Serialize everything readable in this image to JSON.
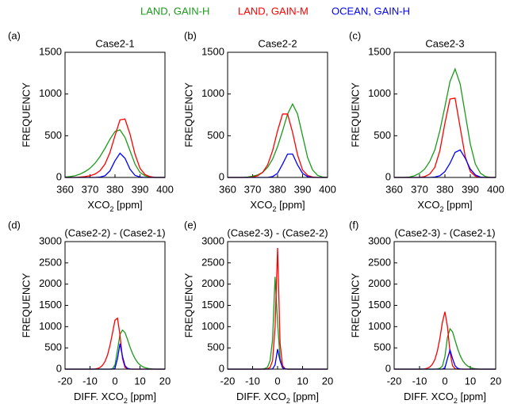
{
  "legend": [
    {
      "name": "LAND, GAIN-H",
      "color": "#1a9a1a"
    },
    {
      "name": "LAND, GAIN-M",
      "color": "#ff0000"
    },
    {
      "name": "OCEAN, GAIN-H",
      "color": "#0000ff"
    }
  ],
  "chart_data": [
    {
      "type": "line",
      "panel": "(a)",
      "title": "Case2-1",
      "xlabel": [
        "XCO",
        "2",
        " [ppm]"
      ],
      "ylabel": "FREQUENCY",
      "x": [
        360,
        362,
        364,
        366,
        368,
        370,
        372,
        374,
        376,
        378,
        380,
        382,
        384,
        386,
        388,
        390,
        392,
        394,
        396,
        398,
        400
      ],
      "xlim": [
        360,
        400
      ],
      "xticks": [
        360,
        370,
        380,
        390,
        400
      ],
      "ylim": [
        0,
        1500
      ],
      "yticks": [
        0,
        500,
        1000,
        1500
      ],
      "series": [
        {
          "color": "#1a9a1a",
          "values": [
            5,
            10,
            20,
            40,
            70,
            110,
            170,
            250,
            350,
            460,
            550,
            570,
            480,
            320,
            160,
            60,
            20,
            5,
            0,
            0,
            0
          ]
        },
        {
          "color": "#ff0000",
          "values": [
            0,
            0,
            0,
            5,
            10,
            20,
            40,
            80,
            160,
            300,
            500,
            690,
            700,
            520,
            280,
            110,
            35,
            10,
            0,
            0,
            0
          ]
        },
        {
          "color": "#0000ff",
          "values": [
            0,
            0,
            0,
            0,
            0,
            0,
            0,
            5,
            20,
            80,
            200,
            290,
            230,
            100,
            25,
            5,
            0,
            0,
            0,
            0,
            0
          ]
        }
      ]
    },
    {
      "type": "line",
      "panel": "(b)",
      "title": "Case2-2",
      "xlabel": [
        "XCO",
        "2",
        " [ppm]"
      ],
      "ylabel": "FREQUENCY",
      "x": [
        360,
        362,
        364,
        366,
        368,
        370,
        372,
        374,
        376,
        378,
        380,
        382,
        384,
        386,
        388,
        390,
        392,
        394,
        396,
        398,
        400
      ],
      "xlim": [
        360,
        400
      ],
      "xticks": [
        360,
        370,
        380,
        390,
        400
      ],
      "ylim": [
        0,
        1500
      ],
      "yticks": [
        0,
        500,
        1000,
        1500
      ],
      "series": [
        {
          "color": "#1a9a1a",
          "values": [
            0,
            0,
            0,
            0,
            5,
            15,
            30,
            60,
            120,
            220,
            370,
            560,
            760,
            880,
            760,
            500,
            240,
            90,
            25,
            5,
            0
          ]
        },
        {
          "color": "#ff0000",
          "values": [
            0,
            0,
            0,
            0,
            0,
            5,
            20,
            60,
            150,
            320,
            560,
            760,
            760,
            540,
            270,
            90,
            25,
            5,
            0,
            0,
            0
          ]
        },
        {
          "color": "#0000ff",
          "values": [
            0,
            0,
            0,
            0,
            0,
            0,
            0,
            0,
            0,
            10,
            50,
            160,
            280,
            280,
            150,
            50,
            10,
            0,
            0,
            0,
            0
          ]
        }
      ]
    },
    {
      "type": "line",
      "panel": "(c)",
      "title": "Case2-3",
      "xlabel": [
        "XCO",
        "2",
        " [ppm]"
      ],
      "ylabel": "FREQUENCY",
      "x": [
        360,
        362,
        364,
        366,
        368,
        370,
        372,
        374,
        376,
        378,
        380,
        382,
        384,
        386,
        388,
        390,
        392,
        394,
        396,
        398,
        400
      ],
      "xlim": [
        360,
        400
      ],
      "xticks": [
        360,
        370,
        380,
        390,
        400
      ],
      "ylim": [
        0,
        1500
      ],
      "yticks": [
        0,
        500,
        1000,
        1500
      ],
      "series": [
        {
          "color": "#1a9a1a",
          "values": [
            0,
            0,
            0,
            5,
            20,
            50,
            100,
            190,
            330,
            560,
            850,
            1150,
            1300,
            1120,
            760,
            400,
            160,
            50,
            10,
            0,
            0
          ]
        },
        {
          "color": "#ff0000",
          "values": [
            0,
            0,
            0,
            0,
            0,
            0,
            10,
            40,
            120,
            320,
            650,
            940,
            950,
            600,
            250,
            70,
            15,
            0,
            0,
            0,
            0
          ]
        },
        {
          "color": "#0000ff",
          "values": [
            0,
            0,
            0,
            0,
            0,
            0,
            0,
            0,
            5,
            20,
            70,
            170,
            300,
            330,
            230,
            100,
            30,
            5,
            0,
            0,
            0
          ]
        }
      ]
    },
    {
      "type": "line",
      "panel": "(d)",
      "title": "(Case2-2) - (Case2-1)",
      "xlabel": [
        "DIFF. XCO",
        "2",
        " [ppm]"
      ],
      "ylabel": "FREQUENCY",
      "x": [
        -20,
        -19,
        -18,
        -17,
        -16,
        -15,
        -14,
        -13,
        -12,
        -11,
        -10,
        -9,
        -8,
        -7,
        -6,
        -5,
        -4,
        -3,
        -2,
        -1,
        0,
        1,
        2,
        3,
        4,
        5,
        6,
        7,
        8,
        9,
        10,
        11,
        12,
        13,
        14,
        15,
        16,
        17,
        18,
        19,
        20
      ],
      "xlim": [
        -20,
        20
      ],
      "xticks": [
        -20,
        -10,
        0,
        10,
        20
      ],
      "ylim": [
        0,
        3000
      ],
      "yticks": [
        0,
        500,
        1000,
        1500,
        2000,
        2500,
        3000
      ],
      "series": [
        {
          "color": "#1a9a1a",
          "values": [
            0,
            0,
            0,
            0,
            0,
            0,
            0,
            0,
            0,
            0,
            0,
            0,
            0,
            0,
            0,
            0,
            0,
            0,
            0,
            10,
            100,
            450,
            820,
            920,
            860,
            700,
            520,
            370,
            250,
            160,
            100,
            60,
            35,
            20,
            10,
            5,
            0,
            0,
            0,
            0,
            0
          ]
        },
        {
          "color": "#ff0000",
          "values": [
            0,
            0,
            0,
            0,
            0,
            0,
            0,
            0,
            0,
            0,
            0,
            0,
            5,
            15,
            40,
            90,
            180,
            330,
            560,
            850,
            1150,
            1200,
            800,
            250,
            40,
            5,
            0,
            0,
            0,
            0,
            0,
            0,
            0,
            0,
            0,
            0,
            0,
            0,
            0,
            0,
            0
          ]
        },
        {
          "color": "#0000ff",
          "values": [
            0,
            0,
            0,
            0,
            0,
            0,
            0,
            0,
            0,
            0,
            0,
            0,
            0,
            0,
            0,
            0,
            0,
            0,
            0,
            0,
            20,
            250,
            600,
            300,
            80,
            20,
            5,
            0,
            0,
            0,
            0,
            0,
            0,
            0,
            0,
            0,
            0,
            0,
            0,
            0,
            0
          ]
        }
      ]
    },
    {
      "type": "line",
      "panel": "(e)",
      "title": "(Case2-3) - (Case2-2)",
      "xlabel": [
        "DIFF. XCO",
        "2",
        " [ppm]"
      ],
      "ylabel": "FREQUENCY",
      "x": [
        -20,
        -19,
        -18,
        -17,
        -16,
        -15,
        -14,
        -13,
        -12,
        -11,
        -10,
        -9,
        -8,
        -7,
        -6,
        -5,
        -4,
        -3,
        -2,
        -1,
        0,
        1,
        2,
        3,
        4,
        5,
        6,
        7,
        8,
        9,
        10,
        11,
        12,
        13,
        14,
        15,
        16,
        17,
        18,
        19,
        20
      ],
      "xlim": [
        -20,
        20
      ],
      "xticks": [
        -20,
        -10,
        0,
        10,
        20
      ],
      "ylim": [
        0,
        3000
      ],
      "yticks": [
        0,
        500,
        1000,
        1500,
        2000,
        2500,
        3000
      ],
      "series": [
        {
          "color": "#1a9a1a",
          "values": [
            0,
            0,
            0,
            0,
            0,
            0,
            0,
            0,
            0,
            0,
            0,
            0,
            0,
            0,
            5,
            15,
            50,
            200,
            700,
            2170,
            1100,
            250,
            50,
            10,
            0,
            0,
            0,
            0,
            0,
            0,
            0,
            0,
            0,
            0,
            0,
            0,
            0,
            0,
            0,
            0,
            0
          ]
        },
        {
          "color": "#ff0000",
          "values": [
            0,
            0,
            0,
            0,
            0,
            0,
            0,
            0,
            0,
            0,
            0,
            0,
            0,
            0,
            0,
            0,
            10,
            40,
            200,
            1000,
            2850,
            600,
            80,
            10,
            0,
            0,
            0,
            0,
            0,
            0,
            0,
            0,
            0,
            0,
            0,
            0,
            0,
            0,
            0,
            0,
            0
          ]
        },
        {
          "color": "#0000ff",
          "values": [
            0,
            0,
            0,
            0,
            0,
            0,
            0,
            0,
            0,
            0,
            0,
            0,
            0,
            0,
            0,
            0,
            0,
            0,
            5,
            100,
            470,
            200,
            30,
            5,
            0,
            0,
            0,
            0,
            0,
            0,
            0,
            0,
            0,
            0,
            0,
            0,
            0,
            0,
            0,
            0,
            0
          ]
        }
      ]
    },
    {
      "type": "line",
      "panel": "(f)",
      "title": "(Case2-3) - (Case2-1)",
      "xlabel": [
        "DIFF. XCO",
        "2",
        " [ppm]"
      ],
      "ylabel": "FREQUENCY",
      "x": [
        -20,
        -19,
        -18,
        -17,
        -16,
        -15,
        -14,
        -13,
        -12,
        -11,
        -10,
        -9,
        -8,
        -7,
        -6,
        -5,
        -4,
        -3,
        -2,
        -1,
        0,
        1,
        2,
        3,
        4,
        5,
        6,
        7,
        8,
        9,
        10,
        11,
        12,
        13,
        14,
        15,
        16,
        17,
        18,
        19,
        20
      ],
      "xlim": [
        -20,
        20
      ],
      "xticks": [
        -20,
        -10,
        0,
        10,
        20
      ],
      "ylim": [
        0,
        3000
      ],
      "yticks": [
        0,
        500,
        1000,
        1500,
        2000,
        2500,
        3000
      ],
      "series": [
        {
          "color": "#1a9a1a",
          "values": [
            0,
            0,
            0,
            0,
            0,
            0,
            0,
            0,
            0,
            0,
            0,
            0,
            0,
            0,
            0,
            0,
            0,
            5,
            20,
            70,
            300,
            750,
            950,
            880,
            680,
            480,
            320,
            200,
            120,
            70,
            40,
            20,
            10,
            5,
            0,
            0,
            0,
            0,
            0,
            0,
            0
          ]
        },
        {
          "color": "#ff0000",
          "values": [
            0,
            0,
            0,
            0,
            0,
            0,
            0,
            0,
            0,
            0,
            0,
            0,
            5,
            20,
            50,
            110,
            220,
            420,
            720,
            1100,
            1350,
            1000,
            400,
            80,
            10,
            0,
            0,
            0,
            0,
            0,
            0,
            0,
            0,
            0,
            0,
            0,
            0,
            0,
            0,
            0,
            0
          ]
        },
        {
          "color": "#0000ff",
          "values": [
            0,
            0,
            0,
            0,
            0,
            0,
            0,
            0,
            0,
            0,
            0,
            0,
            0,
            0,
            0,
            0,
            0,
            0,
            0,
            0,
            30,
            250,
            450,
            250,
            80,
            20,
            5,
            0,
            0,
            0,
            0,
            0,
            0,
            0,
            0,
            0,
            0,
            0,
            0,
            0,
            0
          ]
        }
      ]
    }
  ]
}
